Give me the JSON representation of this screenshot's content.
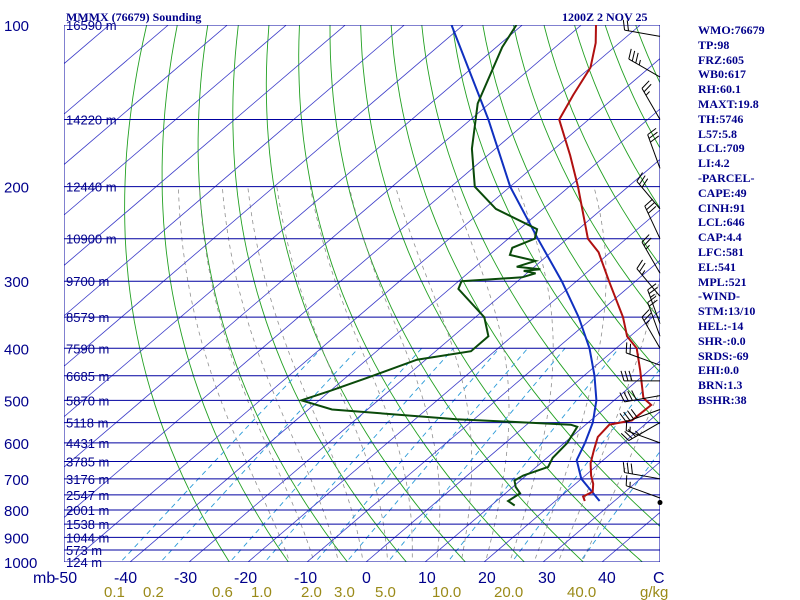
{
  "header": {
    "station": "MMMX (76679) Sounding",
    "time": "1200Z  2 NOV 25"
  },
  "indices": [
    "WMO:76679",
    "TP:98",
    "FRZ:605",
    "WB0:617",
    "RH:60.1",
    "MAXT:19.8",
    "TH:5746",
    "L57:5.8",
    "LCL:709",
    "LI:4.2",
    "-PARCEL-",
    "CAPE:49",
    "CINH:91",
    "LCL:646",
    "CAP:4.4",
    "LFC:581",
    "EL:541",
    "MPL:521",
    "-WIND-",
    "STM:13/10",
    "HEL:-14",
    "SHR-:0.0",
    "SRDS:-69",
    "EHI:0.0",
    "BRN:1.3",
    "BSHR:38"
  ],
  "colors": {
    "isobar": "#0000a0",
    "isotherm": "#3c3cc8",
    "dry_adiabat": "#22a022",
    "moist_adiabat": "#909090",
    "mixing_ratio": "#2a9ad8",
    "temperature": "#b01010",
    "dewpoint": "#0a4a0a",
    "parcel": "#1030c0",
    "wind": "#000000",
    "mixing_label": "#9a8a18"
  },
  "chart_data": {
    "type": "skew-t log-p",
    "pressure_axis": {
      "unit": "mb",
      "range": [
        1000,
        100
      ],
      "levels": [
        100,
        200,
        300,
        400,
        500,
        600,
        700,
        800,
        900,
        1000
      ]
    },
    "height_labels": [
      {
        "p": 100,
        "label": "16590 m"
      },
      {
        "p": 150,
        "label": "14220 m"
      },
      {
        "p": 200,
        "label": "12440 m"
      },
      {
        "p": 250,
        "label": "10900 m"
      },
      {
        "p": 300,
        "label": "9700 m"
      },
      {
        "p": 350,
        "label": "8579 m"
      },
      {
        "p": 400,
        "label": "7590 m"
      },
      {
        "p": 450,
        "label": "6685 m"
      },
      {
        "p": 500,
        "label": "5870 m"
      },
      {
        "p": 550,
        "label": "5118 m"
      },
      {
        "p": 600,
        "label": "4431 m"
      },
      {
        "p": 650,
        "label": "3785 m"
      },
      {
        "p": 700,
        "label": "3176 m"
      },
      {
        "p": 750,
        "label": "2547 m"
      },
      {
        "p": 800,
        "label": "2001 m"
      },
      {
        "p": 850,
        "label": "1538 m"
      },
      {
        "p": 900,
        "label": "1044 m"
      },
      {
        "p": 950,
        "label": "573 m"
      },
      {
        "p": 1000,
        "label": "124 m"
      }
    ],
    "temperature_axis": {
      "unit": "C",
      "ticks": [
        "-50",
        "-40",
        "-30",
        "-20",
        "-10",
        "0",
        "10",
        "20",
        "30",
        "40"
      ],
      "range": [
        -50,
        50
      ]
    },
    "mixing_ratio_axis": {
      "unit": "g/kg",
      "ticks": [
        "0.1",
        "0.2",
        "0.6",
        "1.0",
        "2.0",
        "3.0",
        "5.0",
        "10.0",
        "20.0",
        "40.0"
      ]
    },
    "temperature_profile": [
      {
        "p": 770,
        "t": 25.0
      },
      {
        "p": 755,
        "t": 23.8
      },
      {
        "p": 740,
        "t": 24.5
      },
      {
        "p": 715,
        "t": 23.0
      },
      {
        "p": 690,
        "t": 21.0
      },
      {
        "p": 655,
        "t": 18.5
      },
      {
        "p": 620,
        "t": 16.5
      },
      {
        "p": 585,
        "t": 14.5
      },
      {
        "p": 555,
        "t": 14.0
      },
      {
        "p": 545,
        "t": 17.0
      },
      {
        "p": 510,
        "t": 17.2
      },
      {
        "p": 495,
        "t": 14.5
      },
      {
        "p": 440,
        "t": 8.5
      },
      {
        "p": 400,
        "t": 3.5
      },
      {
        "p": 380,
        "t": -0.5
      },
      {
        "p": 350,
        "t": -5.0
      },
      {
        "p": 300,
        "t": -14.5
      },
      {
        "p": 265,
        "t": -22.0
      },
      {
        "p": 250,
        "t": -26.5
      },
      {
        "p": 200,
        "t": -38.5
      },
      {
        "p": 175,
        "t": -46.0
      },
      {
        "p": 150,
        "t": -55.0
      },
      {
        "p": 135,
        "t": -57.5
      },
      {
        "p": 120,
        "t": -60.0
      },
      {
        "p": 108,
        "t": -64.0
      },
      {
        "p": 100,
        "t": -67.5
      }
    ],
    "dewpoint_profile": [
      {
        "p": 785,
        "t": 14.0
      },
      {
        "p": 770,
        "t": 12.0
      },
      {
        "p": 745,
        "t": 12.5
      },
      {
        "p": 725,
        "t": 10.5
      },
      {
        "p": 705,
        "t": 9.0
      },
      {
        "p": 690,
        "t": 9.5
      },
      {
        "p": 665,
        "t": 12.0
      },
      {
        "p": 640,
        "t": 11.0
      },
      {
        "p": 600,
        "t": 10.5
      },
      {
        "p": 560,
        "t": 9.0
      },
      {
        "p": 555,
        "t": 7.5
      },
      {
        "p": 542,
        "t": -13.0
      },
      {
        "p": 520,
        "t": -36.0
      },
      {
        "p": 500,
        "t": -43.0
      },
      {
        "p": 480,
        "t": -40.0
      },
      {
        "p": 455,
        "t": -36.5
      },
      {
        "p": 420,
        "t": -31.5
      },
      {
        "p": 405,
        "t": -24.0
      },
      {
        "p": 380,
        "t": -24.0
      },
      {
        "p": 350,
        "t": -28.5
      },
      {
        "p": 310,
        "t": -38.5
      },
      {
        "p": 300,
        "t": -39.5
      },
      {
        "p": 295,
        "t": -30.0
      },
      {
        "p": 290,
        "t": -28.5
      },
      {
        "p": 287,
        "t": -31.0
      },
      {
        "p": 285,
        "t": -28.5
      },
      {
        "p": 282,
        "t": -33.0
      },
      {
        "p": 275,
        "t": -31.0
      },
      {
        "p": 268,
        "t": -36.5
      },
      {
        "p": 260,
        "t": -37.5
      },
      {
        "p": 250,
        "t": -35.5
      },
      {
        "p": 240,
        "t": -37.0
      },
      {
        "p": 220,
        "t": -48.0
      },
      {
        "p": 200,
        "t": -56.0
      },
      {
        "p": 170,
        "t": -64.0
      },
      {
        "p": 140,
        "t": -72.0
      },
      {
        "p": 110,
        "t": -79.0
      },
      {
        "p": 100,
        "t": -81.0
      }
    ],
    "parcel_profile": [
      {
        "p": 770,
        "t": 27.5
      },
      {
        "p": 700,
        "t": 20.0
      },
      {
        "p": 646,
        "t": 15.5
      },
      {
        "p": 600,
        "t": 13.5
      },
      {
        "p": 550,
        "t": 10.8
      },
      {
        "p": 500,
        "t": 7.0
      },
      {
        "p": 450,
        "t": 1.8
      },
      {
        "p": 400,
        "t": -4.5
      },
      {
        "p": 350,
        "t": -12.5
      },
      {
        "p": 300,
        "t": -22.5
      },
      {
        "p": 250,
        "t": -35.0
      },
      {
        "p": 200,
        "t": -50.0
      },
      {
        "p": 150,
        "t": -67.0
      },
      {
        "p": 100,
        "t": -92.0
      }
    ],
    "grid": {
      "isobars": true,
      "isotherms": true,
      "dry_adiabats": true,
      "moist_adiabats": true,
      "mixing_ratio_lines": true
    },
    "wind_barbs": [
      {
        "p": 760,
        "dir": 290,
        "kt": 15
      },
      {
        "p": 700,
        "dir": 280,
        "kt": 30
      },
      {
        "p": 600,
        "dir": 290,
        "kt": 15
      },
      {
        "p": 550,
        "dir": 240,
        "kt": 35
      },
      {
        "p": 520,
        "dir": 250,
        "kt": 40
      },
      {
        "p": 490,
        "dir": 260,
        "kt": 40
      },
      {
        "p": 460,
        "dir": 270,
        "kt": 30
      },
      {
        "p": 430,
        "dir": 290,
        "kt": 20
      },
      {
        "p": 400,
        "dir": 330,
        "kt": 25
      },
      {
        "p": 380,
        "dir": 340,
        "kt": 20
      },
      {
        "p": 360,
        "dir": 340,
        "kt": 25
      },
      {
        "p": 320,
        "dir": 320,
        "kt": 25
      },
      {
        "p": 290,
        "dir": 330,
        "kt": 25
      },
      {
        "p": 250,
        "dir": 335,
        "kt": 30
      },
      {
        "p": 220,
        "dir": 320,
        "kt": 30
      },
      {
        "p": 185,
        "dir": 340,
        "kt": 30
      },
      {
        "p": 150,
        "dir": 330,
        "kt": 25
      },
      {
        "p": 125,
        "dir": 300,
        "kt": 35
      },
      {
        "p": 105,
        "dir": 280,
        "kt": 20
      }
    ]
  }
}
